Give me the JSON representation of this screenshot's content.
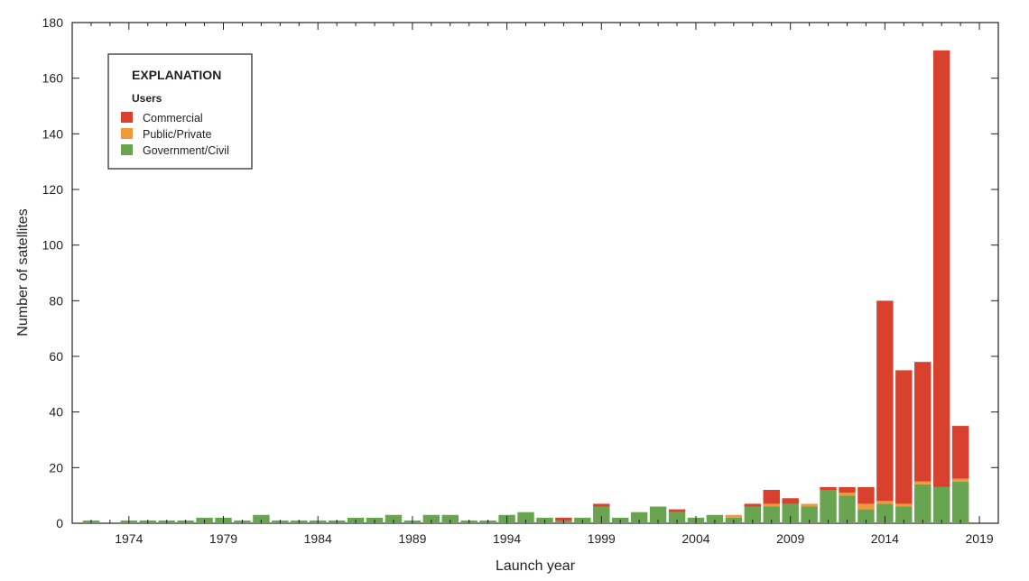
{
  "chart_data": {
    "type": "bar",
    "stacked": true,
    "xlabel": "Launch year",
    "ylabel": "Number of satellites",
    "ylim": [
      0,
      180
    ],
    "yticks": [
      0,
      20,
      40,
      60,
      80,
      100,
      120,
      140,
      160,
      180
    ],
    "xticks": [
      1974,
      1979,
      1984,
      1989,
      1994,
      1999,
      2004,
      2009,
      2014,
      2019
    ],
    "xlim": [
      1971,
      2020
    ],
    "grid": false,
    "legend": {
      "title": "EXPLANATION",
      "subtitle": "Users",
      "placement": "top-left"
    },
    "colors": {
      "Commercial": "#d9412f",
      "Public/Private": "#f0993a",
      "Government/Civil": "#69a551"
    },
    "categories": [
      1972,
      1973,
      1974,
      1975,
      1976,
      1977,
      1978,
      1979,
      1980,
      1981,
      1982,
      1983,
      1984,
      1985,
      1986,
      1987,
      1988,
      1989,
      1990,
      1991,
      1992,
      1993,
      1994,
      1995,
      1996,
      1997,
      1998,
      1999,
      2000,
      2001,
      2002,
      2003,
      2004,
      2005,
      2006,
      2007,
      2008,
      2009,
      2010,
      2011,
      2012,
      2013,
      2014,
      2015,
      2016,
      2017,
      2018
    ],
    "series": [
      {
        "name": "Government/Civil",
        "values": [
          1,
          0,
          1,
          1,
          1,
          1,
          2,
          2,
          1,
          3,
          1,
          1,
          1,
          1,
          2,
          2,
          3,
          1,
          3,
          3,
          1,
          1,
          3,
          4,
          2,
          1,
          2,
          6,
          2,
          4,
          6,
          4,
          2,
          3,
          2,
          6,
          6,
          7,
          6,
          12,
          10,
          5,
          7,
          6,
          14,
          13,
          15
        ]
      },
      {
        "name": "Public/Private",
        "values": [
          0,
          0,
          0,
          0,
          0,
          0,
          0,
          0,
          0,
          0,
          0,
          0,
          0,
          0,
          0,
          0,
          0,
          0,
          0,
          0,
          0,
          0,
          0,
          0,
          0,
          0,
          0,
          0,
          0,
          0,
          0,
          0,
          0,
          0,
          1,
          0,
          1,
          0,
          1,
          0,
          1,
          2,
          1,
          1,
          1,
          0,
          1
        ]
      },
      {
        "name": "Commercial",
        "values": [
          0,
          0,
          0,
          0,
          0,
          0,
          0,
          0,
          0,
          0,
          0,
          0,
          0,
          0,
          0,
          0,
          0,
          0,
          0,
          0,
          0,
          0,
          0,
          0,
          0,
          1,
          0,
          1,
          0,
          0,
          0,
          1,
          0,
          0,
          0,
          1,
          5,
          2,
          0,
          1,
          2,
          6,
          72,
          48,
          43,
          157,
          19
        ]
      }
    ]
  }
}
